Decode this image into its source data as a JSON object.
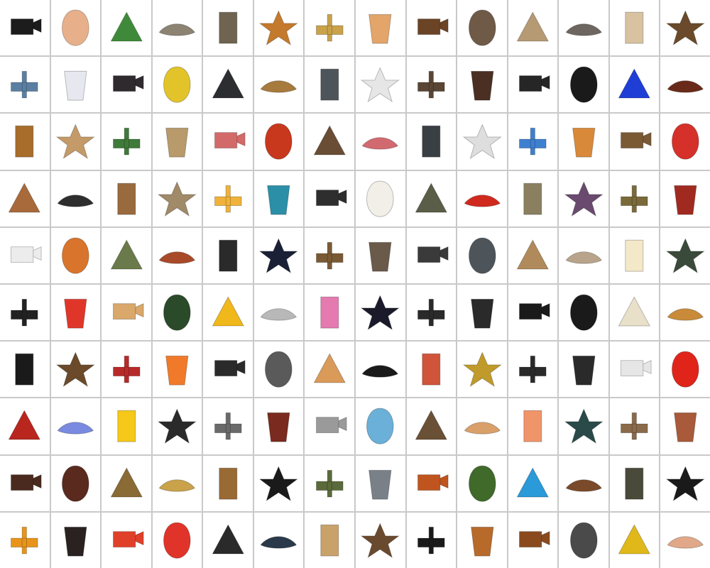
{
  "grid": {
    "columns": 14,
    "rows": 10,
    "items": [
      {
        "icon": "video-camera-icon",
        "color": "#1c1c1c"
      },
      {
        "icon": "peace-hand-icon",
        "color": "#e8b08a"
      },
      {
        "icon": "clover-icon",
        "color": "#3f8a3a"
      },
      {
        "icon": "feather-icon",
        "color": "#8d8372"
      },
      {
        "icon": "pyramid-temple-icon",
        "color": "#6e6450"
      },
      {
        "icon": "butterfly-icon",
        "color": "#c47a2c"
      },
      {
        "icon": "statue-icon",
        "color": "#c9a24a"
      },
      {
        "icon": "dumbbell-icon",
        "color": "#e3a56a"
      },
      {
        "icon": "cuckoo-clock-icon",
        "color": "#6b4325"
      },
      {
        "icon": "padlock-icon",
        "color": "#6f5a48"
      },
      {
        "icon": "antler-icon",
        "color": "#b59a74"
      },
      {
        "icon": "armadillo-icon",
        "color": "#6d6660"
      },
      {
        "icon": "arrowhead-icon",
        "color": "#d8c2a0"
      },
      {
        "icon": "axe-icon",
        "color": "#6a4a2a"
      },
      {
        "icon": "jet-plane-icon",
        "color": "#5b7fa3"
      },
      {
        "icon": "baby-bottle-icon",
        "color": "#e7e7ef"
      },
      {
        "icon": "rabbit-icon",
        "color": "#2e2a2e"
      },
      {
        "icon": "banana-icon",
        "color": "#e2c42a"
      },
      {
        "icon": "bathtub-icon",
        "color": "#2b2d30"
      },
      {
        "icon": "bell-icon",
        "color": "#a77a3d"
      },
      {
        "icon": "binoculars-icon",
        "color": "#4d555b"
      },
      {
        "icon": "gannet-bird-icon",
        "color": "#e6e6e6"
      },
      {
        "icon": "birdhouse-icon",
        "color": "#5a4634"
      },
      {
        "icon": "bear-icon",
        "color": "#4a2f22"
      },
      {
        "icon": "cat-icon",
        "color": "#262626"
      },
      {
        "icon": "rotary-phone-icon",
        "color": "#1a1a1a"
      },
      {
        "icon": "blue-cup-icon",
        "color": "#1e3ed6"
      },
      {
        "icon": "djembe-drum-icon",
        "color": "#6a2a1a"
      },
      {
        "icon": "muffin-icon",
        "color": "#a86d2b"
      },
      {
        "icon": "nightstand-icon",
        "color": "#c49a68"
      },
      {
        "icon": "cactus-icon",
        "color": "#3f7a3a"
      },
      {
        "icon": "sack-icon",
        "color": "#b89a6b"
      },
      {
        "icon": "chair-icon",
        "color": "#d36a6a"
      },
      {
        "icon": "chili-pepper-icon",
        "color": "#c8381d"
      },
      {
        "icon": "squirrel-icon",
        "color": "#6a4d35"
      },
      {
        "icon": "hanger-icon",
        "color": "#d16a70"
      },
      {
        "icon": "cooking-pot-icon",
        "color": "#3a3f44"
      },
      {
        "icon": "coral-icon",
        "color": "#dedede"
      },
      {
        "icon": "cotton-swab-icon",
        "color": "#3f7fd0"
      },
      {
        "icon": "croissant-icon",
        "color": "#d9893a"
      },
      {
        "icon": "cane-icon",
        "color": "#7a5a35"
      },
      {
        "icon": "dart-icon",
        "color": "#d6302a"
      },
      {
        "icon": "fawn-icon",
        "color": "#a86a3b"
      },
      {
        "icon": "desk-lamp-icon",
        "color": "#2e2e2e"
      },
      {
        "icon": "dog-icon",
        "color": "#9a6a3f"
      },
      {
        "icon": "stone-arch-icon",
        "color": "#a08a68"
      },
      {
        "icon": "dress-icon",
        "color": "#f0b23a"
      },
      {
        "icon": "dustpan-brush-icon",
        "color": "#2b8fa8"
      },
      {
        "icon": "headphones-icon",
        "color": "#2e2e2e"
      },
      {
        "icon": "egg-icon",
        "color": "#f2efe8"
      },
      {
        "icon": "bust-statue-icon",
        "color": "#5a5e48"
      },
      {
        "icon": "fire-hydrant-icon",
        "color": "#d02a1e"
      },
      {
        "icon": "pike-fish-icon",
        "color": "#8a8060"
      },
      {
        "icon": "tulip-icon",
        "color": "#6a4a6e"
      },
      {
        "icon": "frog-icon",
        "color": "#7a6a3a"
      },
      {
        "icon": "gas-can-icon",
        "color": "#a02a20"
      },
      {
        "icon": "ghost-icon",
        "color": "#ececec"
      },
      {
        "icon": "gingerbread-man-icon",
        "color": "#d9742c"
      },
      {
        "icon": "grass-leaves-icon",
        "color": "#6a7a4a"
      },
      {
        "icon": "guitar-icon",
        "color": "#a84a2a"
      },
      {
        "icon": "hair-dryer-icon",
        "color": "#2a2a2a"
      },
      {
        "icon": "handbag-icon",
        "color": "#1a2035"
      },
      {
        "icon": "hat-icon",
        "color": "#7a5a35"
      },
      {
        "icon": "mole-icon",
        "color": "#6a5a4a"
      },
      {
        "icon": "hook-weight-icon",
        "color": "#3a3a3a"
      },
      {
        "icon": "horseshoe-icon",
        "color": "#4d555b"
      },
      {
        "icon": "horseshoe-crab-icon",
        "color": "#b08a5a"
      },
      {
        "icon": "skull-icon",
        "color": "#b8a48a"
      },
      {
        "icon": "ice-cream-cone-icon",
        "color": "#f3e8c8"
      },
      {
        "icon": "pill-bug-icon",
        "color": "#3a4a3a"
      },
      {
        "icon": "clothes-iron-icon",
        "color": "#222222"
      },
      {
        "icon": "citrus-juicer-icon",
        "color": "#e0362a"
      },
      {
        "icon": "chess-knight-icon",
        "color": "#d9a86a"
      },
      {
        "icon": "table-lamp-icon",
        "color": "#2a4a2a"
      },
      {
        "icon": "yellow-leaf-icon",
        "color": "#f0b81a"
      },
      {
        "icon": "lighter-icon",
        "color": "#b8b8b8"
      },
      {
        "icon": "hibiscus-flower-icon",
        "color": "#e47ab0"
      },
      {
        "icon": "hand-fan-icon",
        "color": "#1a1a2a"
      },
      {
        "icon": "typewriter-icon",
        "color": "#2a2a2a"
      },
      {
        "icon": "microphone-icon",
        "color": "#2a2a2a"
      },
      {
        "icon": "microscope-icon",
        "color": "#1a1a1a"
      },
      {
        "icon": "boot-icon",
        "color": "#1a1a1a"
      },
      {
        "icon": "computer-mouse-icon",
        "color": "#e8e0c8"
      },
      {
        "icon": "mushroom-icon",
        "color": "#c98a3a"
      },
      {
        "icon": "ottoman-box-icon",
        "color": "#1a1a1a"
      },
      {
        "icon": "ox-skull-icon",
        "color": "#6a4a2a"
      },
      {
        "icon": "paddle-icon",
        "color": "#b82a2a"
      },
      {
        "icon": "paint-roller-icon",
        "color": "#f07a2a"
      },
      {
        "icon": "pants-icon",
        "color": "#2a2a2a"
      },
      {
        "icon": "parking-meter-icon",
        "color": "#5a5a5a"
      },
      {
        "icon": "peanut-icon",
        "color": "#d99a5a"
      },
      {
        "icon": "penguin-icon",
        "color": "#1a1a1a"
      },
      {
        "icon": "foot-icon",
        "color": "#d0543a"
      },
      {
        "icon": "pineapple-icon",
        "color": "#c09a2a"
      },
      {
        "icon": "tobacco-pipe-icon",
        "color": "#2a2a2a"
      },
      {
        "icon": "plunger-icon",
        "color": "#2a2a2a"
      },
      {
        "icon": "propeller-icon",
        "color": "#e6e6e6"
      },
      {
        "icon": "takeout-box-icon",
        "color": "#e0241a"
      },
      {
        "icon": "urn-icon",
        "color": "#b8261e"
      },
      {
        "icon": "buddha-statue-icon",
        "color": "#7a8ae0"
      },
      {
        "icon": "rubber-duck-icon",
        "color": "#f5c81a"
      },
      {
        "icon": "rubber-glove-icon",
        "color": "#2a2a2a"
      },
      {
        "icon": "l-square-ruler-icon",
        "color": "#6a6a6a"
      },
      {
        "icon": "letter-s-icon",
        "color": "#7a2a1e"
      },
      {
        "icon": "hand-saw-icon",
        "color": "#9a9a9a"
      },
      {
        "icon": "kitchen-scale-icon",
        "color": "#6ab0d8"
      },
      {
        "icon": "sea-lion-icon",
        "color": "#6a5035"
      },
      {
        "icon": "seashell-icon",
        "color": "#d9a06a"
      },
      {
        "icon": "shrimp-icon",
        "color": "#f0946a"
      },
      {
        "icon": "soap-dispenser-icon",
        "color": "#2a4a4a"
      },
      {
        "icon": "syringe-icon",
        "color": "#8a6a4a"
      },
      {
        "icon": "starfish-icon",
        "color": "#a85a3a"
      },
      {
        "icon": "side-table-icon",
        "color": "#4a2a1e"
      },
      {
        "icon": "sword-icon",
        "color": "#5a2a1e"
      },
      {
        "icon": "tank-icon",
        "color": "#8a6a35"
      },
      {
        "icon": "faucet-icon",
        "color": "#c9a24a"
      },
      {
        "icon": "teddy-bear-icon",
        "color": "#9a6a35"
      },
      {
        "icon": "telescope-icon",
        "color": "#1a1a1a"
      },
      {
        "icon": "television-icon",
        "color": "#5a6a3a"
      },
      {
        "icon": "tombstone-icon",
        "color": "#7a8088"
      },
      {
        "icon": "totem-pole-icon",
        "color": "#c0541e"
      },
      {
        "icon": "topiary-tree-icon",
        "color": "#3f6a2a"
      },
      {
        "icon": "tropical-fish-icon",
        "color": "#2a9ad8"
      },
      {
        "icon": "trowel-icon",
        "color": "#7a4a2a"
      },
      {
        "icon": "tortoise-icon",
        "color": "#4a4a3a"
      },
      {
        "icon": "umbrella-icon",
        "color": "#1a1a1a"
      },
      {
        "icon": "vase-icon",
        "color": "#e8941a"
      },
      {
        "icon": "leather-pouch-icon",
        "color": "#2a2220"
      },
      {
        "icon": "life-vest-icon",
        "color": "#e0402a"
      },
      {
        "icon": "watermelon-slice-icon",
        "color": "#e0342a"
      },
      {
        "icon": "headband-icon",
        "color": "#2a2a2a"
      },
      {
        "icon": "wetsuit-icon",
        "color": "#2a3a4a"
      },
      {
        "icon": "wicker-basket-icon",
        "color": "#c9a26a"
      },
      {
        "icon": "bison-icon",
        "color": "#6a4a2e"
      },
      {
        "icon": "high-heel-shoe-icon",
        "color": "#1a1a1a"
      },
      {
        "icon": "rolling-pin-icon",
        "color": "#b86a2a"
      },
      {
        "icon": "gavel-icon",
        "color": "#8a4a1e"
      },
      {
        "icon": "wrench-icon",
        "color": "#4a4a4a"
      },
      {
        "icon": "tongs-icon",
        "color": "#e0b81a"
      },
      {
        "icon": "face-photo-icon",
        "color": "#e0a888"
      }
    ]
  }
}
